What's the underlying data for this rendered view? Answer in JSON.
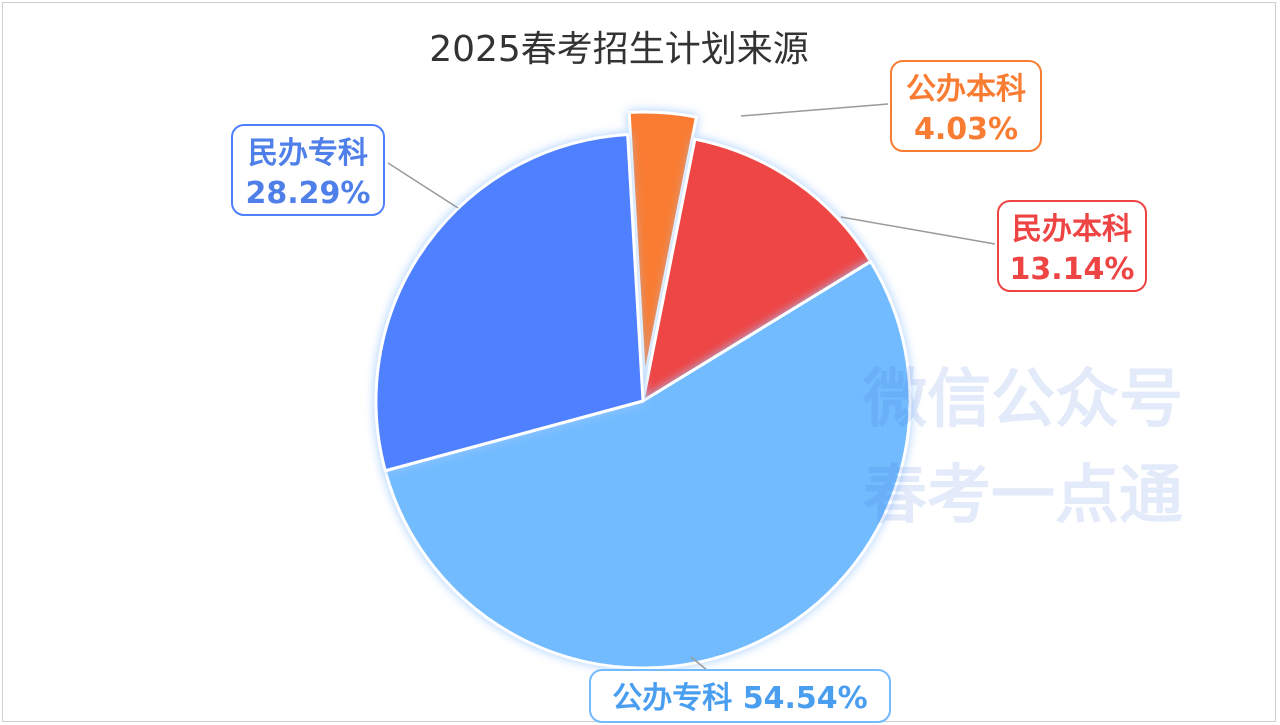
{
  "chart_data": {
    "type": "pie",
    "title": "2025春考招生计划来源",
    "slices": [
      {
        "name": "公办本科",
        "value": 4.03,
        "label": "4.03%",
        "color": "#f97c33",
        "exploded": true
      },
      {
        "name": "民办本科",
        "value": 13.14,
        "label": "13.14%",
        "color": "#ee4444"
      },
      {
        "name": "公办专科",
        "value": 54.54,
        "label": "54.54%",
        "color": "#72bbff"
      },
      {
        "name": "民办专科",
        "value": 28.29,
        "label": "28.29%",
        "color": "#4f80ff"
      }
    ]
  },
  "watermark": {
    "line1": "微信公众号",
    "line2": "春考一点通"
  }
}
